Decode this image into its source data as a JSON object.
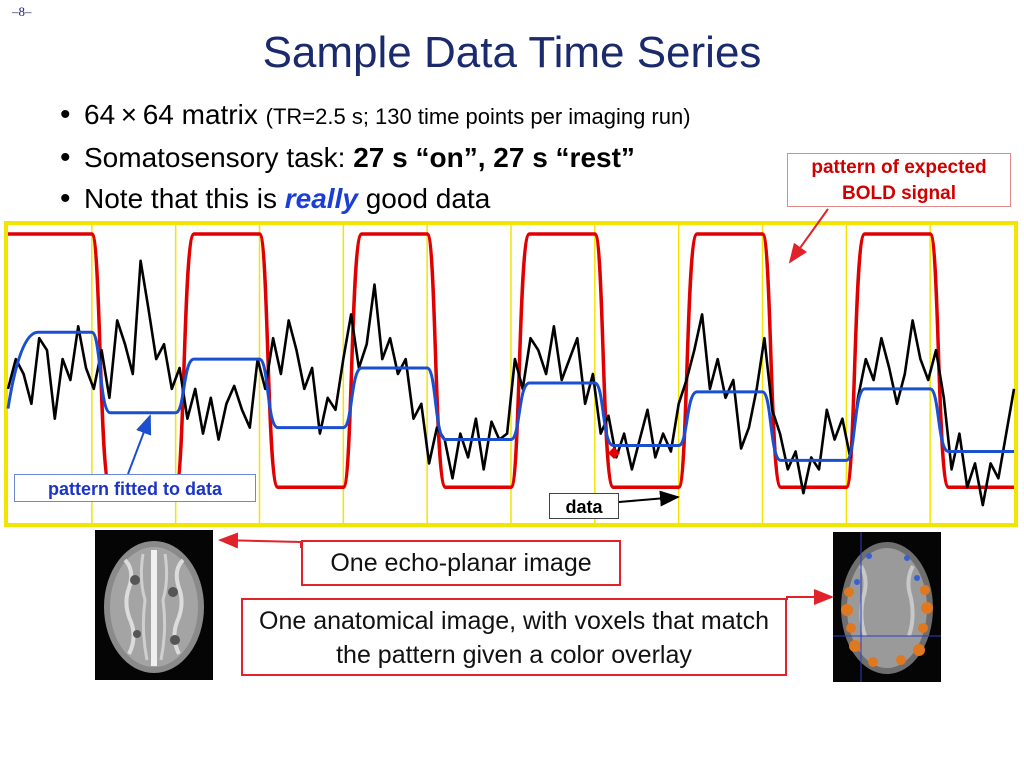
{
  "page_number": "–8–",
  "title": "Sample Data Time Series",
  "bullets": {
    "b1_main": "64 × 64 matrix",
    "b1_small": "(TR=2.5 s; 130 time points per imaging run)",
    "b2_pre": "Somatosensory task: ",
    "b2_bold": "27 s “on”, 27 s “rest”",
    "b3_pre": "Note that this is ",
    "b3_emph": "really",
    "b3_post": " good data"
  },
  "labels": {
    "expected": "pattern of expected BOLD signal",
    "fitted": "pattern fitted to data",
    "data": "data",
    "echo": "One echo-planar image",
    "anatomical": "One anatomical image, with voxels that match the pattern given a color overlay"
  },
  "colors": {
    "expected": "#e00000",
    "fitted": "#1a4fd0",
    "data": "#000000",
    "plot_border": "#f2e600",
    "gridlines": "#f2e600"
  },
  "chart_data": {
    "type": "line",
    "time_points": 130,
    "blocks": 12,
    "grid_divisions": 12,
    "series": [
      {
        "name": "pattern of expected BOLD signal",
        "pattern": "boxcar",
        "low": 0.12,
        "high": 0.97
      },
      {
        "name": "pattern fitted to data",
        "levels": [
          0.64,
          0.37,
          0.55,
          0.32,
          0.52,
          0.28,
          0.47,
          0.26,
          0.44,
          0.21,
          0.45,
          0.24
        ]
      },
      {
        "name": "data",
        "values": [
          0.45,
          0.55,
          0.5,
          0.4,
          0.62,
          0.58,
          0.35,
          0.55,
          0.48,
          0.66,
          0.52,
          0.45,
          0.58,
          0.42,
          0.68,
          0.6,
          0.5,
          0.88,
          0.72,
          0.55,
          0.6,
          0.45,
          0.52,
          0.35,
          0.45,
          0.3,
          0.42,
          0.28,
          0.4,
          0.46,
          0.38,
          0.32,
          0.55,
          0.45,
          0.62,
          0.5,
          0.68,
          0.58,
          0.45,
          0.52,
          0.3,
          0.42,
          0.38,
          0.55,
          0.7,
          0.52,
          0.6,
          0.8,
          0.55,
          0.62,
          0.5,
          0.55,
          0.35,
          0.4,
          0.2,
          0.32,
          0.28,
          0.15,
          0.3,
          0.22,
          0.35,
          0.18,
          0.34,
          0.28,
          0.3,
          0.55,
          0.45,
          0.62,
          0.58,
          0.5,
          0.66,
          0.48,
          0.55,
          0.62,
          0.4,
          0.5,
          0.3,
          0.36,
          0.22,
          0.3,
          0.18,
          0.28,
          0.38,
          0.22,
          0.3,
          0.24,
          0.4,
          0.48,
          0.58,
          0.7,
          0.45,
          0.55,
          0.42,
          0.48,
          0.25,
          0.32,
          0.45,
          0.62,
          0.38,
          0.3,
          0.18,
          0.24,
          0.1,
          0.22,
          0.18,
          0.38,
          0.28,
          0.35,
          0.22,
          0.42,
          0.55,
          0.48,
          0.62,
          0.52,
          0.4,
          0.5,
          0.68,
          0.55,
          0.48,
          0.58,
          0.42,
          0.18,
          0.3,
          0.12,
          0.2,
          0.06,
          0.2,
          0.15,
          0.3,
          0.45
        ]
      }
    ]
  }
}
